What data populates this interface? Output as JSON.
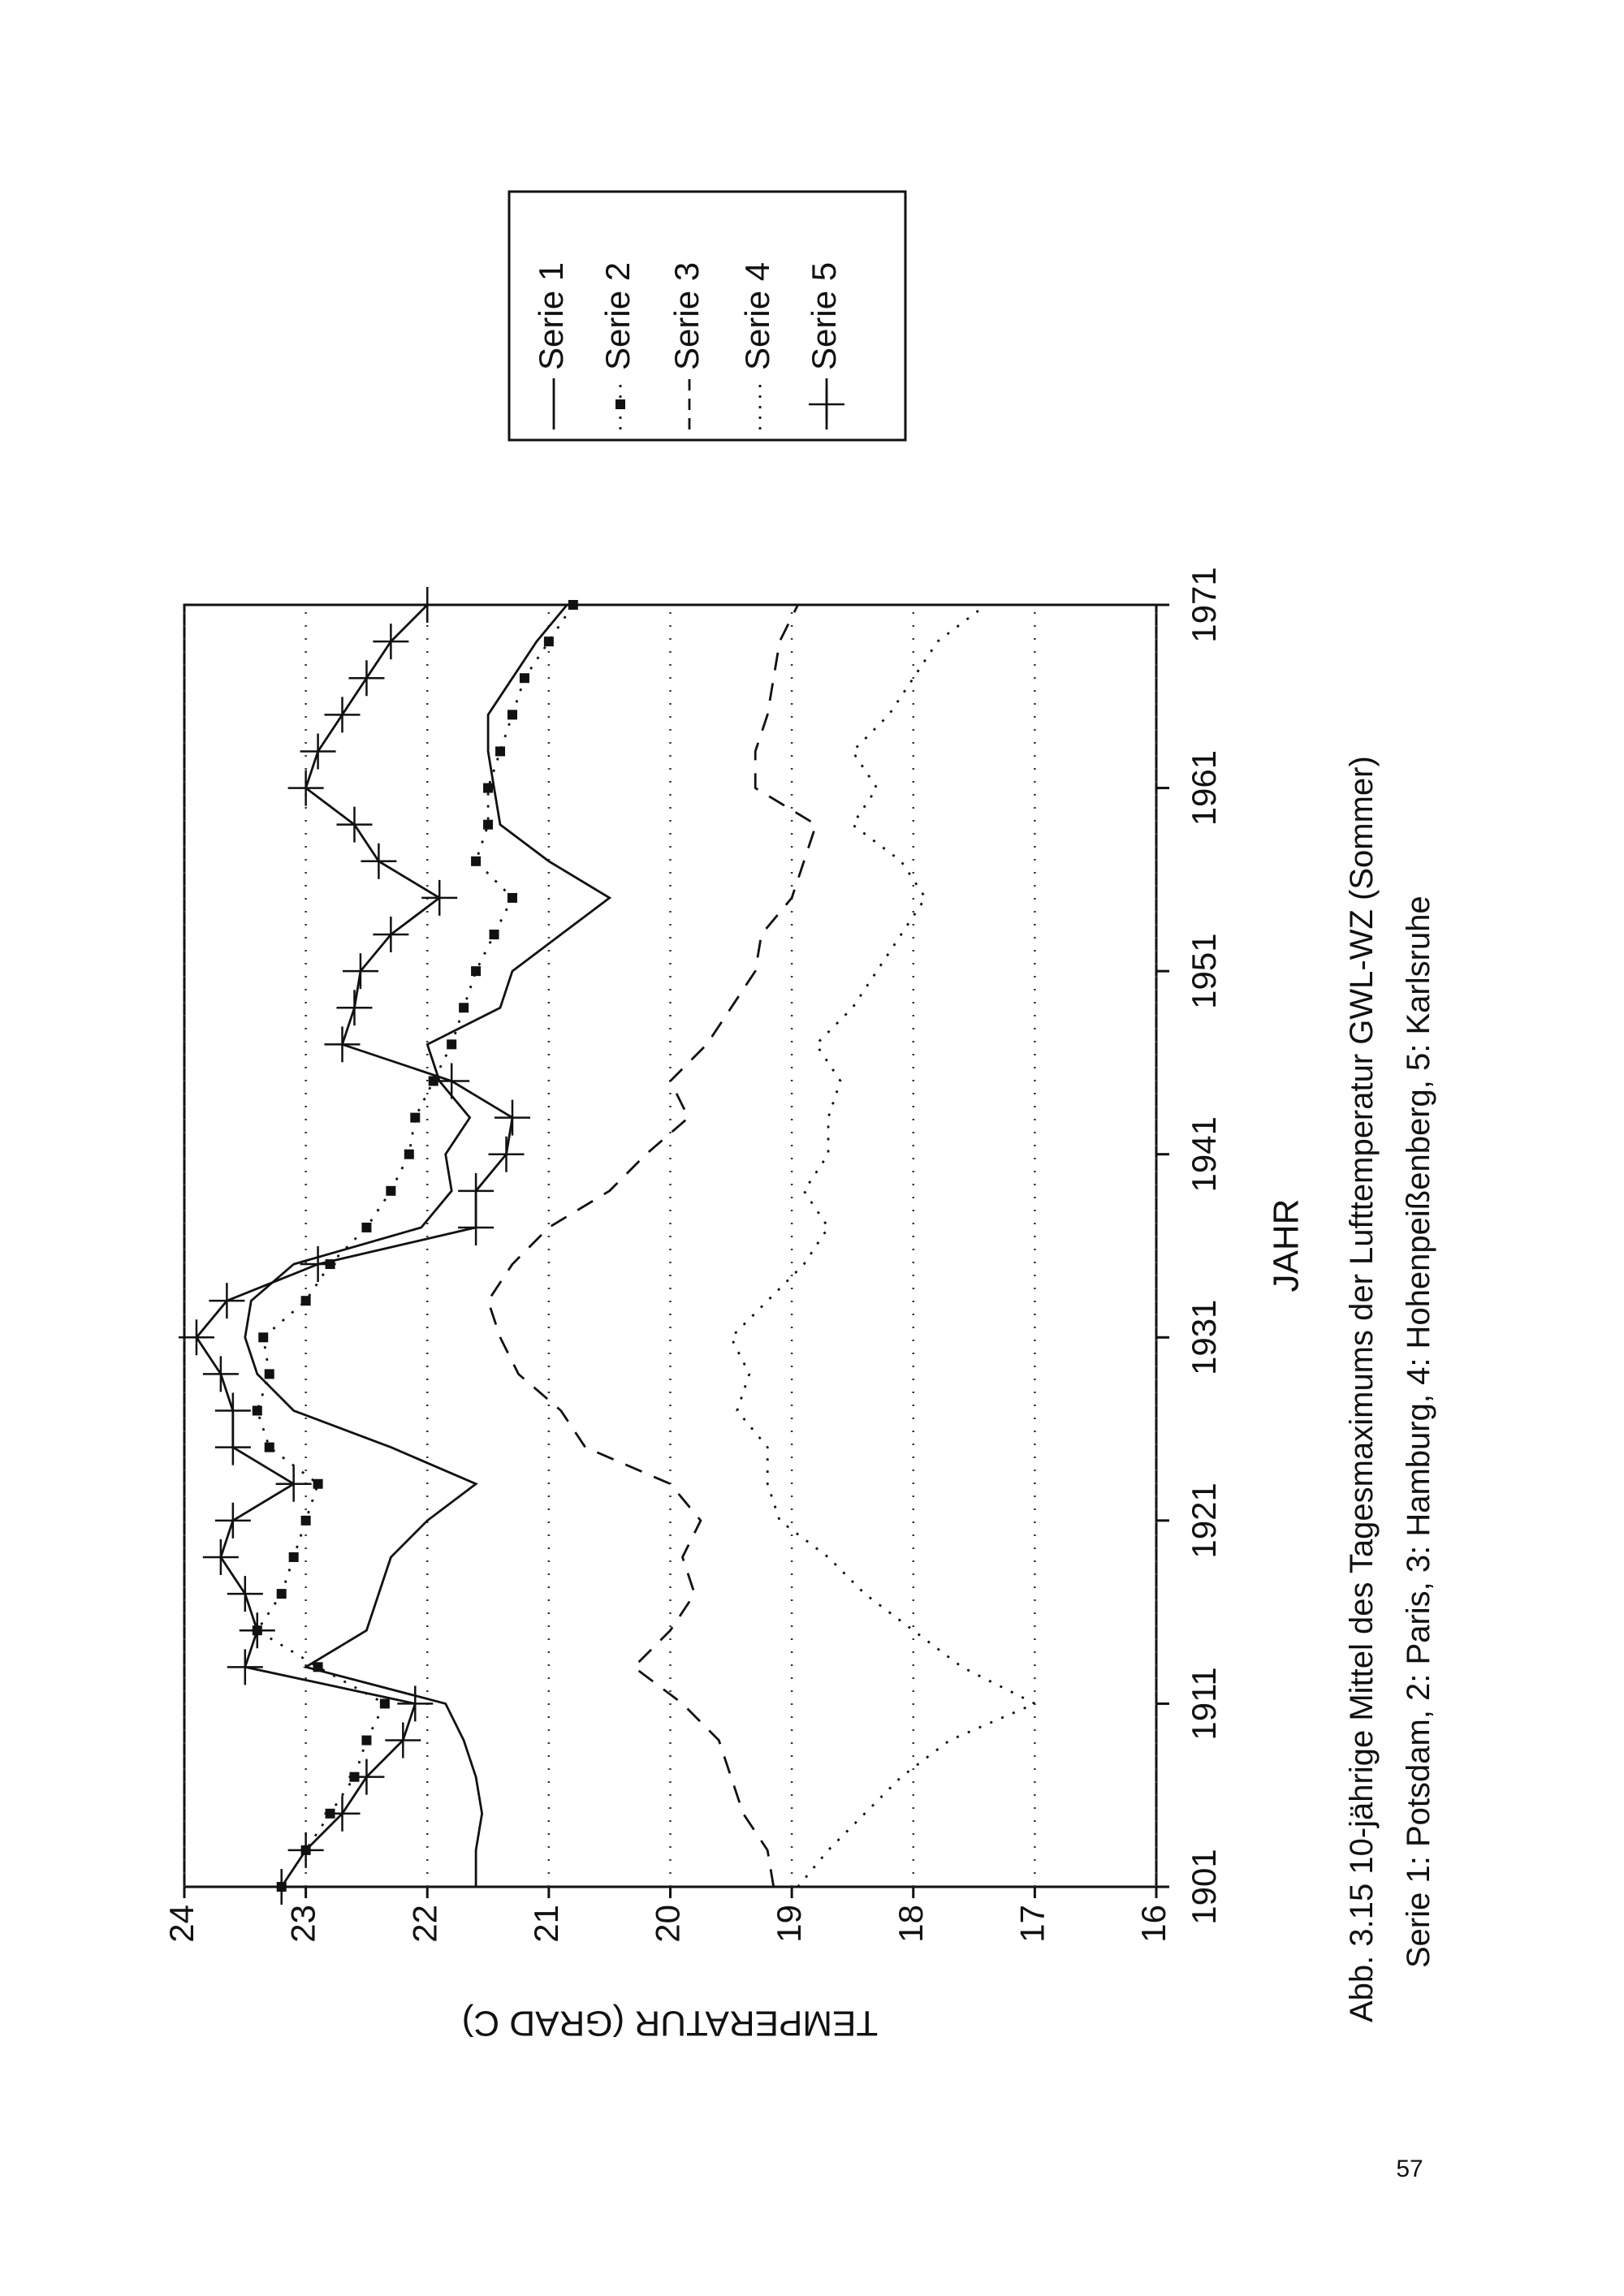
{
  "chart_data": {
    "type": "line",
    "x_label": "JAHR",
    "y_label": "TEMPERATUR (GRAD C)",
    "caption": [
      "Abb. 3.15 10-jährige Mittel des Tagesmaximums der Lufttemperatur GWL-WZ (Sommer)",
      "Serie 1: Potsdam, 2: Paris, 3: Hamburg, 4: Hohenpeißenberg, 5: Karlsruhe"
    ],
    "page_number": "57",
    "x": [
      1901,
      1903,
      1905,
      1907,
      1909,
      1911,
      1913,
      1915,
      1917,
      1919,
      1921,
      1923,
      1925,
      1927,
      1929,
      1931,
      1933,
      1935,
      1937,
      1939,
      1941,
      1943,
      1945,
      1947,
      1949,
      1951,
      1953,
      1955,
      1957,
      1959,
      1961,
      1963,
      1965,
      1967,
      1969,
      1971
    ],
    "xlim": [
      1901,
      1971
    ],
    "xticks": [
      1901,
      1911,
      1921,
      1931,
      1941,
      1951,
      1961,
      1971
    ],
    "ylim": [
      16,
      24
    ],
    "yticks": [
      16,
      17,
      18,
      19,
      20,
      21,
      22,
      23,
      24
    ],
    "grid": true,
    "series": [
      {
        "name": "Serie 1",
        "color": "#111111",
        "linestyle": "solid",
        "marker": null,
        "values": [
          21.6,
          21.6,
          21.55,
          21.6,
          21.7,
          21.85,
          23.0,
          22.5,
          22.4,
          22.3,
          22.0,
          21.6,
          22.3,
          23.1,
          23.4,
          23.5,
          23.45,
          23.1,
          22.05,
          21.8,
          21.85,
          21.65,
          21.9,
          22.0,
          21.4,
          21.3,
          20.9,
          20.5,
          21.0,
          21.4,
          21.45,
          21.5,
          21.5,
          21.3,
          21.1,
          20.85
        ]
      },
      {
        "name": "Serie 2",
        "color": "#111111",
        "linestyle": "dotted",
        "marker": "square",
        "values": [
          23.2,
          23.0,
          22.8,
          22.6,
          22.5,
          22.35,
          22.9,
          23.4,
          23.2,
          23.1,
          23.0,
          22.9,
          23.3,
          23.4,
          23.3,
          23.35,
          23.0,
          22.8,
          22.5,
          22.3,
          22.15,
          22.1,
          21.95,
          21.8,
          21.7,
          21.6,
          21.45,
          21.3,
          21.6,
          21.5,
          21.5,
          21.4,
          21.3,
          21.2,
          21.0,
          20.8
        ]
      },
      {
        "name": "Serie 3",
        "color": "#111111",
        "linestyle": "dashed",
        "marker": null,
        "values": [
          19.15,
          19.2,
          19.4,
          19.5,
          19.6,
          19.9,
          20.3,
          20.0,
          19.8,
          19.9,
          19.75,
          20.0,
          20.7,
          20.9,
          21.25,
          21.4,
          21.5,
          21.3,
          21.0,
          20.5,
          20.2,
          19.85,
          20.0,
          19.7,
          19.5,
          19.3,
          19.25,
          19.0,
          18.9,
          18.8,
          19.3,
          19.3,
          19.2,
          19.15,
          19.1,
          18.95
        ]
      },
      {
        "name": "Serie 4",
        "color": "#111111",
        "linestyle": "dotted",
        "marker": null,
        "values": [
          18.95,
          18.7,
          18.4,
          18.1,
          17.7,
          17.0,
          17.6,
          18.0,
          18.4,
          18.7,
          19.1,
          19.2,
          19.2,
          19.45,
          19.35,
          19.5,
          19.2,
          18.9,
          18.7,
          18.9,
          18.7,
          18.7,
          18.6,
          18.8,
          18.5,
          18.3,
          18.1,
          17.9,
          18.1,
          18.5,
          18.3,
          18.5,
          18.2,
          18.0,
          17.8,
          17.4
        ]
      },
      {
        "name": "Serie 5",
        "color": "#111111",
        "linestyle": "solid",
        "marker": "plus",
        "values": [
          23.2,
          23.0,
          22.7,
          22.5,
          22.2,
          22.1,
          23.5,
          23.4,
          23.5,
          23.7,
          23.6,
          23.1,
          23.6,
          23.6,
          23.7,
          23.9,
          23.65,
          22.9,
          21.6,
          21.6,
          21.35,
          21.3,
          21.8,
          22.7,
          22.6,
          22.55,
          22.3,
          21.9,
          22.4,
          22.6,
          23.0,
          22.9,
          22.7,
          22.5,
          22.3,
          22.0
        ]
      }
    ]
  }
}
